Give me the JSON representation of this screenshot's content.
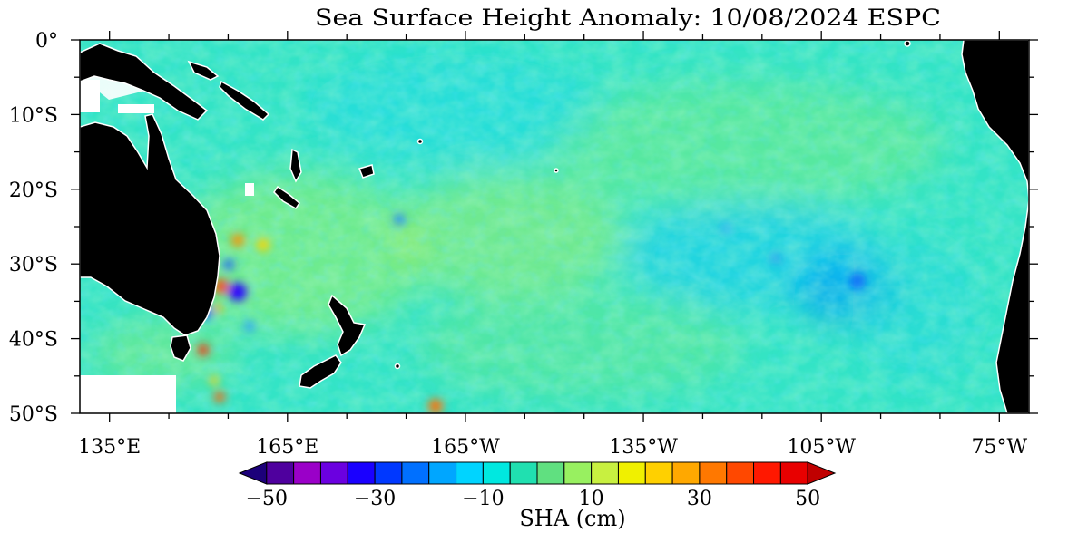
{
  "title": "Sea Surface Height Anomaly: 10/08/2024 ESPC",
  "map": {
    "lat_labels": [
      "0°",
      "10°S",
      "20°S",
      "30°S",
      "40°S",
      "50°S"
    ],
    "lat_values": [
      0,
      -10,
      -20,
      -30,
      -40,
      -50
    ],
    "lon_labels": [
      "135°E",
      "165°E",
      "165°W",
      "135°W",
      "105°W",
      "75°W"
    ],
    "lon_values": [
      135,
      165,
      195,
      225,
      255,
      285
    ],
    "lon_range": [
      130,
      290
    ],
    "lat_range": [
      0,
      -50
    ],
    "land_color": "#000000",
    "missing_color": "#ffffff"
  },
  "colorbar": {
    "label": "SHA (cm)",
    "range": [
      -50,
      50
    ],
    "step": 5,
    "tick_labels": [
      "−50",
      "−30",
      "−10",
      "10",
      "30",
      "50"
    ],
    "tick_values": [
      -50,
      -30,
      -10,
      10,
      30,
      50
    ],
    "colors": [
      "#1c007a",
      "#4f009e",
      "#9a00c8",
      "#6b00e0",
      "#1a00ff",
      "#0038ff",
      "#0070ff",
      "#00a6ff",
      "#00d4ff",
      "#00e8e0",
      "#20e0b0",
      "#60e080",
      "#98f060",
      "#c8f040",
      "#f0f000",
      "#ffd000",
      "#ffa800",
      "#ff7800",
      "#ff4800",
      "#ff1800",
      "#e80000",
      "#c00000"
    ]
  }
}
